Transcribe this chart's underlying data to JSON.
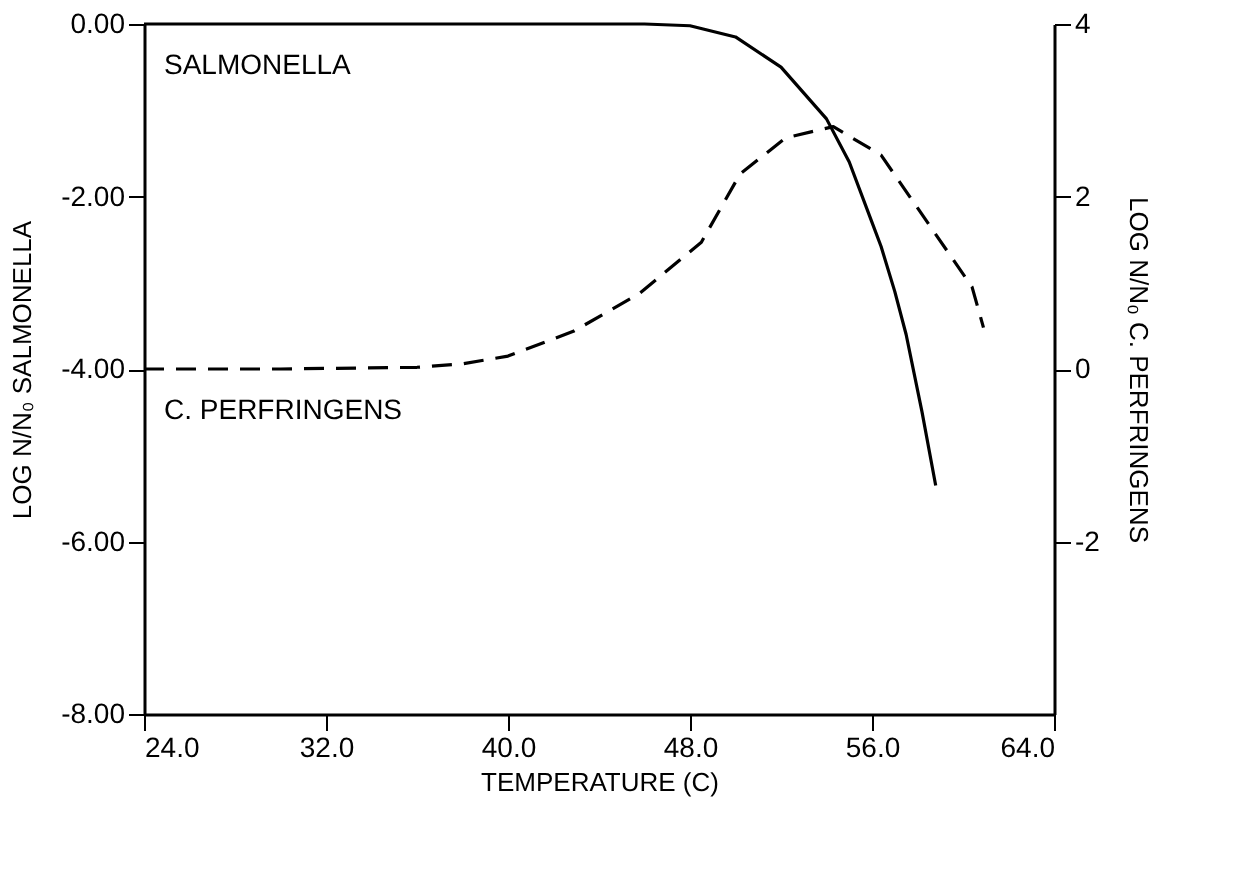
{
  "chart_data": {
    "type": "line",
    "xlabel": "TEMPERATURE (C)",
    "ylabel": "LOG N/N₀ SALMONELLA",
    "y2label": "LOG N/N₀ C. PERFRINGENS",
    "xlim": [
      24,
      64
    ],
    "xticks": [
      {
        "value": 24,
        "label": "24.0"
      },
      {
        "value": 32,
        "label": "32.0"
      },
      {
        "value": 40,
        "label": "40.0"
      },
      {
        "value": 48,
        "label": "48.0"
      },
      {
        "value": 56,
        "label": "56.0"
      },
      {
        "value": 64,
        "label": "64.0"
      }
    ],
    "ylim": [
      -8,
      0
    ],
    "yticks": [
      {
        "value": 0,
        "label": "0.00"
      },
      {
        "value": -2,
        "label": "-2.00"
      },
      {
        "value": -4,
        "label": "-4.00"
      },
      {
        "value": -6,
        "label": "-6.00"
      },
      {
        "value": -8,
        "label": "-8.00"
      }
    ],
    "y2lim": [
      -4,
      4
    ],
    "y2ticks": [
      4,
      2,
      0,
      -2
    ],
    "grid": false,
    "marker": "none",
    "series": [
      {
        "name": "SALMONELLA",
        "color": "#000000",
        "line_style": "solid",
        "x": [
          24,
          30,
          36,
          42,
          46,
          48,
          50,
          52,
          54,
          55,
          56,
          56.4,
          57,
          57.5,
          58.2,
          58.8
        ],
        "values": [
          0,
          0,
          0,
          0,
          0,
          -0.02,
          -0.15,
          -0.5,
          -1.1,
          -1.6,
          -2.3,
          -2.58,
          -3.1,
          -3.6,
          -4.5,
          -5.35
        ]
      },
      {
        "name": "C. PERFRINGENS",
        "color": "#000000",
        "line_style": "dashed",
        "axis": "y2",
        "x": [
          24,
          30,
          36,
          38,
          40,
          42.9,
          45.8,
          48.5,
          50.2,
          52.2,
          54.3,
          56.4,
          58.7,
          60.4,
          60.9
        ],
        "values": [
          0,
          0,
          0.02,
          0.06,
          0.15,
          0.44,
          0.88,
          1.47,
          2.26,
          2.68,
          2.81,
          2.48,
          1.6,
          0.95,
          0.48
        ]
      }
    ]
  }
}
